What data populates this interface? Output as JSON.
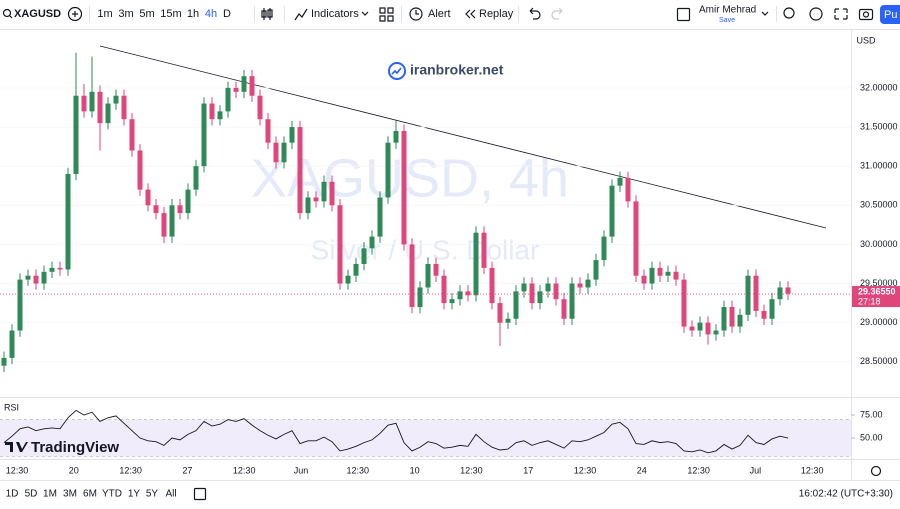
{
  "toolbar": {
    "symbol": "XAGUSD",
    "intervals": [
      "1m",
      "3m",
      "5m",
      "15m",
      "1h",
      "4h",
      "D"
    ],
    "active_interval": "4h",
    "indicators": "Indicators",
    "alert": "Alert",
    "replay": "Replay",
    "user": "Amir Mehrad",
    "save": "Save",
    "publish": "Pu"
  },
  "bottom_bar": {
    "ranges": [
      "1D",
      "5D",
      "1M",
      "3M",
      "6M",
      "YTD",
      "1Y",
      "5Y",
      "All"
    ],
    "clock": "16:02:42 (UTC+3:30)"
  },
  "brand": {
    "site": "iranbroker.net",
    "logo": "TradingView"
  },
  "chart_data": {
    "type": "candlestick",
    "title": "XAGUSD, 4h",
    "subtitle": "Silver / U.S. Dollar",
    "currency": "USD",
    "up_color": "#2e8b57",
    "down_color": "#e0457b",
    "x_labels": [
      "12:30",
      "20",
      "12:30",
      "27",
      "12:30",
      "Jun",
      "12:30",
      "10",
      "12:30",
      "17",
      "12:30",
      "24",
      "12:30",
      "Jul",
      "12:30"
    ],
    "ylim": [
      28.05,
      32.74
    ],
    "yticks": [
      {
        "value": 28.5,
        "label": "28.50000"
      },
      {
        "value": 29,
        "label": "29.00000"
      },
      {
        "value": 29.5,
        "label": "29.50000"
      },
      {
        "value": 30,
        "label": "30.00000"
      },
      {
        "value": 30.5,
        "label": "30.50000"
      },
      {
        "value": 31,
        "label": "31.00000"
      },
      {
        "value": 31.5,
        "label": "31.50000"
      },
      {
        "value": 32,
        "label": "32.00000"
      }
    ],
    "last_price": {
      "value": 29.3655,
      "label": "29.36550"
    },
    "countdown": "27:18",
    "open": [
      28.45,
      28.55,
      28.9,
      29.55,
      29.6,
      29.5,
      29.65,
      29.7,
      29.68,
      30.9,
      31.9,
      31.7,
      31.95,
      31.55,
      31.8,
      31.9,
      31.6,
      31.2,
      30.7,
      30.5,
      30.4,
      30.1,
      30.5,
      30.4,
      30.7,
      31.0,
      31.8,
      31.6,
      31.7,
      32.0,
      31.95,
      32.15,
      31.9,
      31.6,
      31.3,
      31.05,
      31.3,
      31.5,
      30.4,
      30.6,
      30.55,
      30.8,
      30.5,
      29.5,
      29.6,
      29.75,
      29.95,
      30.1,
      30.6,
      31.3,
      31.45,
      30.0,
      29.2,
      29.45,
      29.75,
      29.6,
      29.25,
      29.3,
      29.4,
      29.35,
      30.15,
      29.7,
      29.25,
      29.0,
      29.05,
      29.4,
      29.5,
      29.25,
      29.4,
      29.5,
      29.3,
      29.05,
      29.5,
      29.45,
      29.55,
      29.8,
      30.1,
      30.75,
      30.85,
      30.55,
      29.6,
      29.5,
      29.7,
      29.6,
      29.65,
      29.55,
      28.95,
      28.9,
      29.0,
      28.85,
      28.9,
      29.2,
      28.95,
      29.1,
      29.6,
      29.15,
      29.05,
      29.3,
      29.45
    ],
    "high": [
      28.63,
      28.98,
      29.63,
      29.68,
      29.68,
      29.73,
      29.78,
      29.78,
      30.98,
      32.45,
      32.05,
      32.4,
      32.03,
      31.88,
      31.98,
      31.98,
      31.68,
      31.28,
      30.78,
      30.58,
      30.48,
      30.58,
      30.58,
      30.78,
      31.08,
      31.88,
      31.88,
      31.78,
      32.08,
      32.08,
      32.23,
      32.23,
      31.98,
      31.68,
      31.38,
      31.38,
      31.58,
      31.58,
      30.68,
      30.68,
      30.88,
      30.88,
      30.58,
      29.68,
      29.83,
      30.03,
      30.18,
      30.68,
      31.38,
      31.58,
      31.53,
      30.08,
      29.53,
      29.83,
      29.83,
      29.68,
      29.38,
      29.48,
      29.48,
      30.23,
      30.23,
      29.78,
      29.33,
      29.13,
      29.48,
      29.58,
      29.58,
      29.48,
      29.58,
      29.58,
      29.38,
      29.58,
      29.58,
      29.63,
      29.88,
      30.18,
      30.83,
      30.93,
      30.93,
      30.63,
      29.68,
      29.78,
      29.78,
      29.73,
      29.73,
      29.63,
      29.03,
      29.08,
      29.08,
      28.98,
      29.28,
      29.28,
      29.18,
      29.68,
      29.68,
      29.23,
      29.38,
      29.53,
      29.53
    ],
    "low": [
      28.37,
      28.47,
      28.82,
      29.47,
      29.42,
      29.42,
      29.57,
      29.6,
      29.6,
      30.82,
      31.62,
      31.62,
      31.2,
      31.47,
      31.72,
      31.52,
      31.12,
      30.62,
      30.42,
      30.32,
      30.02,
      30.02,
      30.32,
      30.32,
      30.62,
      30.92,
      31.52,
      31.52,
      31.62,
      31.87,
      31.87,
      31.82,
      31.52,
      31.22,
      30.97,
      30.97,
      31.22,
      30.32,
      30.32,
      30.47,
      30.47,
      30.42,
      29.42,
      29.42,
      29.52,
      29.67,
      29.87,
      30.02,
      30.52,
      31.22,
      29.92,
      29.12,
      29.12,
      29.37,
      29.52,
      29.17,
      29.17,
      29.22,
      29.27,
      29.27,
      29.62,
      29.17,
      28.7,
      28.92,
      28.97,
      29.32,
      29.17,
      29.17,
      29.32,
      29.22,
      28.97,
      28.97,
      29.37,
      29.37,
      29.47,
      29.72,
      30.02,
      30.67,
      30.47,
      29.52,
      29.42,
      29.42,
      29.52,
      29.52,
      29.47,
      28.87,
      28.82,
      28.82,
      28.72,
      28.77,
      28.82,
      28.87,
      28.87,
      29.02,
      29.07,
      28.97,
      28.97,
      29.22,
      29.29
    ],
    "close": [
      28.55,
      28.9,
      29.55,
      29.6,
      29.5,
      29.65,
      29.7,
      29.68,
      30.9,
      31.9,
      31.7,
      31.95,
      31.55,
      31.8,
      31.9,
      31.6,
      31.2,
      30.7,
      30.5,
      30.4,
      30.1,
      30.5,
      30.4,
      30.7,
      31.0,
      31.8,
      31.6,
      31.7,
      32.0,
      31.95,
      32.15,
      31.9,
      31.6,
      31.3,
      31.05,
      31.3,
      31.5,
      30.4,
      30.6,
      30.55,
      30.8,
      30.5,
      29.5,
      29.6,
      29.75,
      29.95,
      30.1,
      30.6,
      31.3,
      31.45,
      30.0,
      29.2,
      29.45,
      29.75,
      29.6,
      29.25,
      29.3,
      29.4,
      29.35,
      30.15,
      29.7,
      29.25,
      29.0,
      29.05,
      29.4,
      29.5,
      29.25,
      29.4,
      29.5,
      29.3,
      29.05,
      29.5,
      29.45,
      29.55,
      29.8,
      30.1,
      30.75,
      30.85,
      30.55,
      29.6,
      29.5,
      29.7,
      29.6,
      29.65,
      29.55,
      28.95,
      28.9,
      29.0,
      28.85,
      28.9,
      29.2,
      28.95,
      29.1,
      29.6,
      29.15,
      29.05,
      29.3,
      29.45,
      29.37
    ],
    "rsi": {
      "name": "RSI",
      "color": "#131722",
      "band_color": "#f1ecfb",
      "ylim": [
        28.3,
        91.3
      ],
      "yticks": [
        {
          "value": 50,
          "label": "50.00"
        },
        {
          "value": 75,
          "label": "75.00"
        }
      ],
      "bands": [
        70,
        30
      ],
      "values": [
        45,
        52,
        60,
        62,
        58,
        60,
        61,
        60,
        72,
        80,
        75,
        78,
        68,
        72,
        74,
        66,
        58,
        50,
        47,
        46,
        42,
        50,
        48,
        54,
        58,
        68,
        63,
        65,
        70,
        68,
        71,
        64,
        58,
        53,
        49,
        54,
        58,
        44,
        47,
        47,
        51,
        46,
        36,
        38,
        41,
        45,
        48,
        55,
        64,
        66,
        45,
        36,
        40,
        46,
        44,
        39,
        40,
        42,
        41,
        54,
        46,
        40,
        37,
        38,
        45,
        47,
        42,
        45,
        47,
        43,
        39,
        47,
        46,
        48,
        52,
        56,
        65,
        67,
        60,
        44,
        43,
        47,
        45,
        46,
        44,
        36,
        35,
        37,
        34,
        36,
        43,
        38,
        42,
        53,
        45,
        43,
        49,
        52,
        50
      ]
    }
  }
}
